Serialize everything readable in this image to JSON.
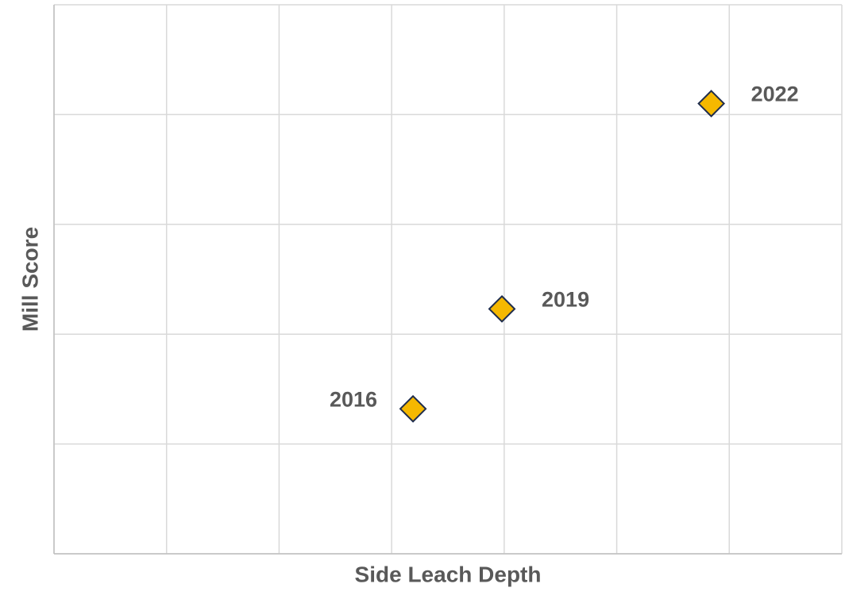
{
  "chart_data": {
    "type": "scatter",
    "x_label": "Side Leach Depth",
    "y_label": "Mill Score",
    "labels": [
      "2016",
      "2019",
      "2022"
    ],
    "x": [
      3.19,
      3.98,
      5.84
    ],
    "values": [
      1.32,
      2.23,
      4.1
    ],
    "color": "#f5b800",
    "edge_color": "#1f2d4d",
    "xlim": [
      0,
      7
    ],
    "ylim": [
      0,
      5
    ],
    "xticks": [
      0,
      1,
      2,
      3,
      4,
      5,
      6,
      7
    ],
    "yticks": [
      0,
      1,
      2,
      3,
      4,
      5
    ],
    "grid": true
  }
}
